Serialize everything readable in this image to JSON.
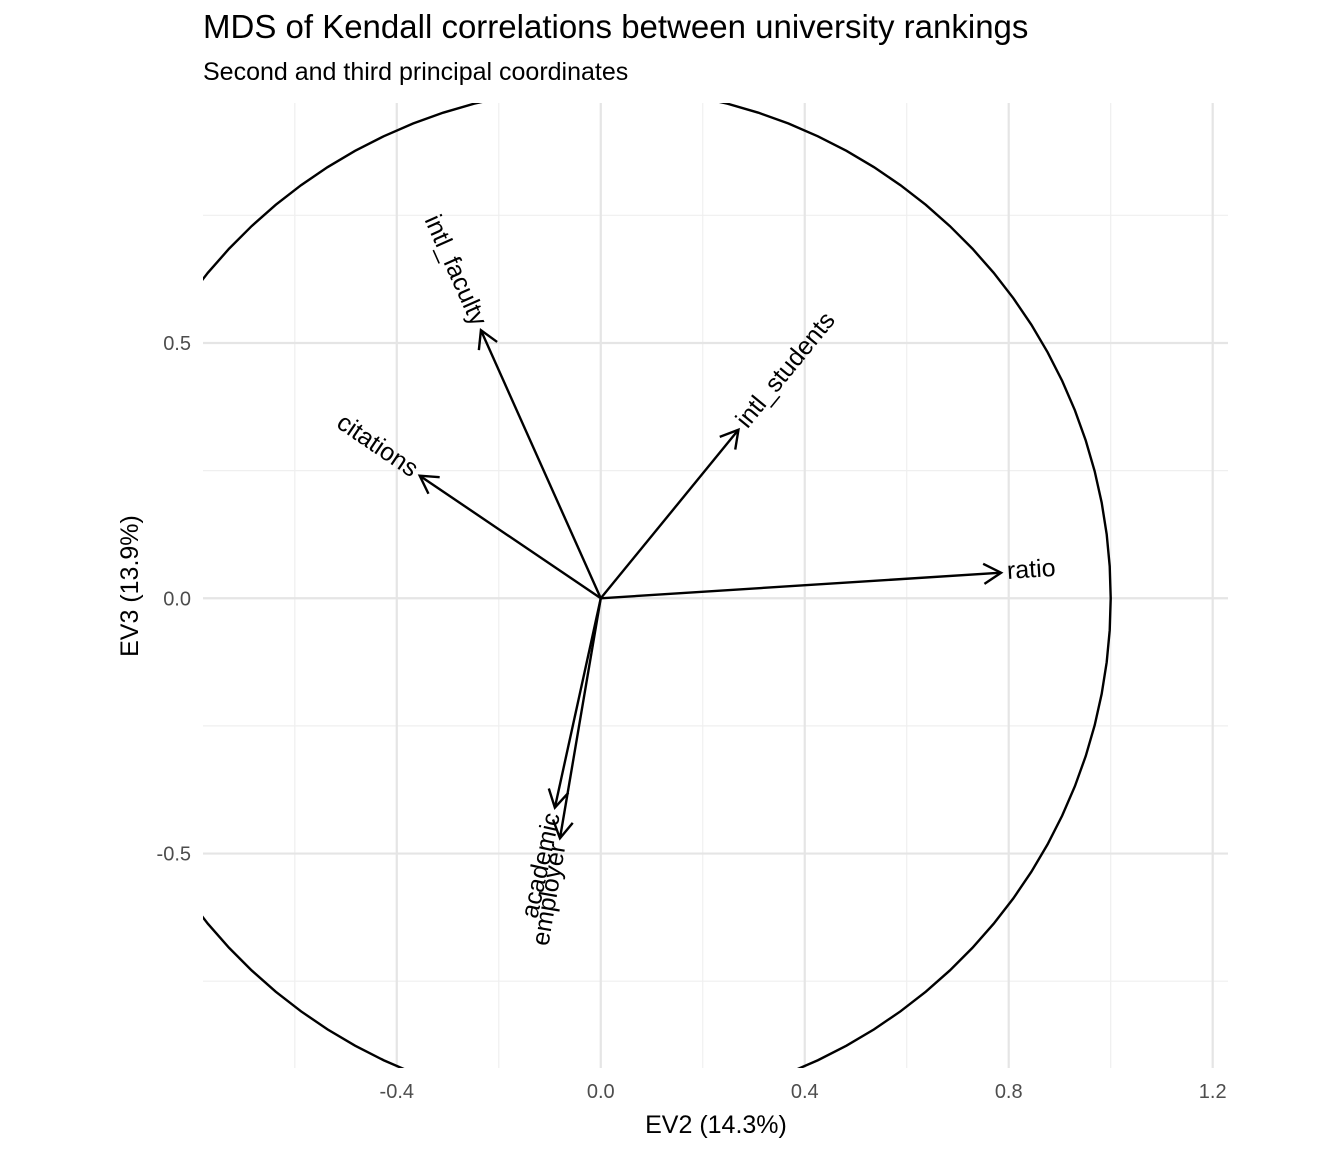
{
  "chart_data": {
    "type": "scatter",
    "title": "MDS of Kendall correlations between university rankings",
    "subtitle": "Second and third principal coordinates",
    "xlabel": "EV2 (14.3%)",
    "ylabel": "EV3 (13.9%)",
    "xlim": [
      -0.78,
      1.23
    ],
    "ylim": [
      -0.92,
      0.97
    ],
    "x_ticks": [
      -0.4,
      0.0,
      0.4,
      0.8,
      1.2
    ],
    "x_tick_labels": [
      "-0.4",
      "0.0",
      "0.4",
      "0.8",
      "1.2"
    ],
    "y_ticks": [
      -0.5,
      0.0,
      0.5
    ],
    "y_tick_labels": [
      "-0.5",
      "0.0",
      "0.5"
    ],
    "grid": true,
    "unit_circle": true,
    "vectors": [
      {
        "name": "intl_faculty",
        "x": -0.235,
        "y": 0.525
      },
      {
        "name": "intl_students",
        "x": 0.27,
        "y": 0.33
      },
      {
        "name": "citations",
        "x": -0.355,
        "y": 0.24
      },
      {
        "name": "ratio",
        "x": 0.785,
        "y": 0.05
      },
      {
        "name": "academic",
        "x": -0.09,
        "y": -0.41
      },
      {
        "name": "employer",
        "x": -0.08,
        "y": -0.47
      }
    ]
  }
}
